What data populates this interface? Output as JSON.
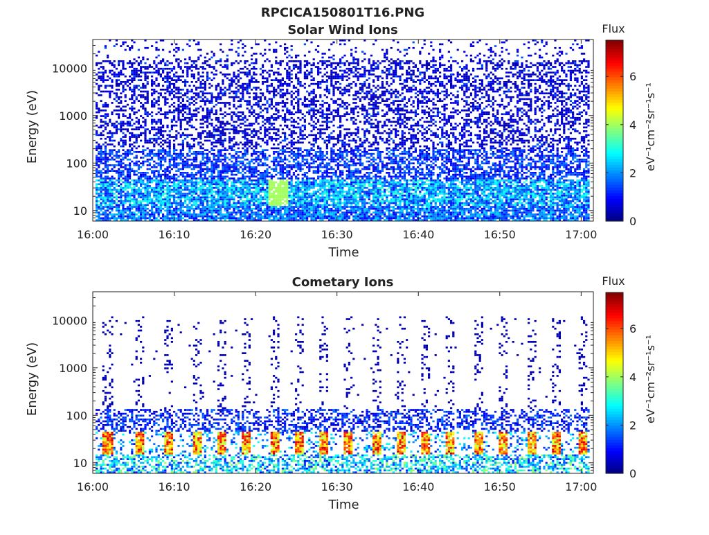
{
  "figure_title": "RPCICA150801T16.PNG",
  "colors": {
    "colormap": "jet"
  },
  "chart_data": [
    {
      "type": "heatmap",
      "title": "Solar Wind Ions",
      "xlabel": "Time",
      "ylabel": "Energy (eV)",
      "x_ticks": [
        "16:00",
        "16:10",
        "16:20",
        "16:30",
        "16:40",
        "16:50",
        "17:00"
      ],
      "x_range_minutes": [
        0,
        61.5
      ],
      "y_scale": "log",
      "y_ticks": [
        "10",
        "100",
        "1000",
        "10000"
      ],
      "y_tick_values": [
        10,
        100,
        1000,
        10000
      ],
      "ylim": [
        6,
        40000
      ],
      "colorbar": {
        "label_top": "Flux",
        "label_units": "eV⁻¹cm⁻²sr⁻¹s⁻¹",
        "ticks": [
          "0",
          "2",
          "4",
          "6"
        ],
        "tick_values": [
          0,
          2,
          4,
          6
        ],
        "range": [
          0,
          7.5
        ]
      },
      "band_profile": [
        {
          "energy_range": [
            6,
            12
          ],
          "typical_flux": 2.0
        },
        {
          "energy_range": [
            12,
            45
          ],
          "typical_flux": 2.5,
          "max_flux": 4.0
        },
        {
          "energy_range": [
            45,
            200
          ],
          "typical_flux": 1.5
        },
        {
          "energy_range": [
            200,
            40000
          ],
          "typical_flux": 0.6
        }
      ],
      "peak_time_minutes": 22.5
    },
    {
      "type": "heatmap",
      "title": "Cometary Ions",
      "xlabel": "Time",
      "ylabel": "Energy (eV)",
      "x_ticks": [
        "16:00",
        "16:10",
        "16:20",
        "16:30",
        "16:40",
        "16:50",
        "17:00"
      ],
      "x_range_minutes": [
        0,
        61.5
      ],
      "y_scale": "log",
      "y_ticks": [
        "10",
        "100",
        "1000",
        "10000"
      ],
      "y_tick_values": [
        10,
        100,
        1000,
        10000
      ],
      "ylim": [
        6,
        40000
      ],
      "colorbar": {
        "label_top": "Flux",
        "label_units": "eV⁻¹cm⁻²sr⁻¹s⁻¹",
        "ticks": [
          "0",
          "2",
          "4",
          "6"
        ],
        "tick_values": [
          0,
          2,
          4,
          6
        ],
        "range": [
          0,
          7.5
        ]
      },
      "band_profile": [
        {
          "energy_range": [
            15,
            45
          ],
          "typical_flux": 5.5,
          "max_flux": 7.0
        },
        {
          "energy_range": [
            45,
            130
          ],
          "typical_flux": 1.5
        },
        {
          "energy_range": [
            130,
            12000
          ],
          "typical_flux": 0.5
        }
      ],
      "burst_times_minutes": [
        1.5,
        5.5,
        9,
        12.5,
        15.5,
        18.5,
        22,
        25,
        28,
        31,
        34.5,
        37.5,
        40.5,
        43.5,
        47,
        50,
        53.5,
        56.5,
        60
      ]
    }
  ]
}
